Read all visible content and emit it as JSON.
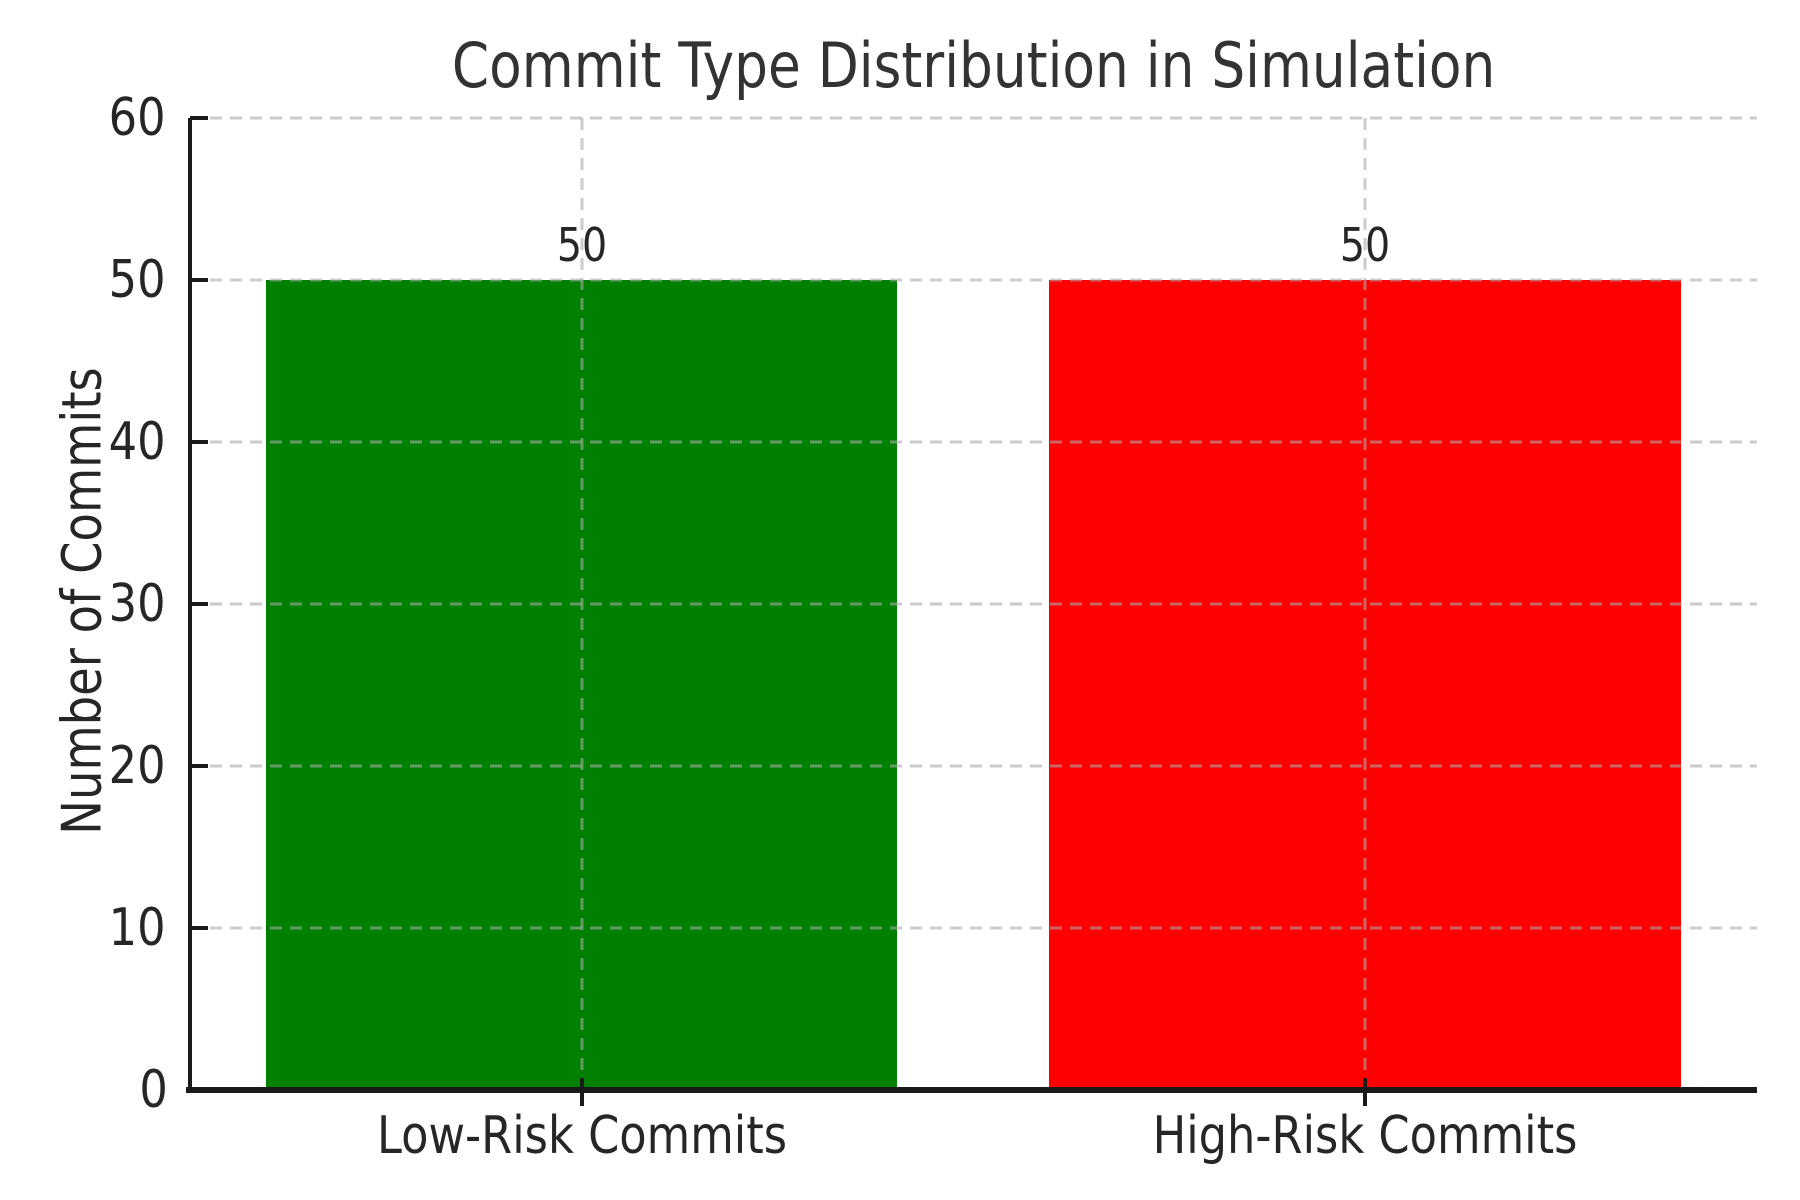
{
  "chart_data": {
    "type": "bar",
    "title": "Commit Type Distribution in Simulation",
    "ylabel": "Number of Commits",
    "categories": [
      "Low-Risk Commits",
      "High-Risk Commits"
    ],
    "values": [
      50,
      50
    ],
    "bar_value_labels": [
      "50",
      "50"
    ],
    "bar_colors": [
      "#008000",
      "#ff0000"
    ],
    "ylim": [
      0,
      60
    ],
    "yticks": [
      0,
      10,
      20,
      30,
      40,
      50,
      60
    ],
    "grid": {
      "style": "dashed",
      "color": "#a8a8a8",
      "axes": "both",
      "drawn_over_bars": true
    },
    "legend": {
      "visible": false
    },
    "text_color": "#262626",
    "axis_color": "#1a1a1a",
    "background": "#ffffff"
  }
}
